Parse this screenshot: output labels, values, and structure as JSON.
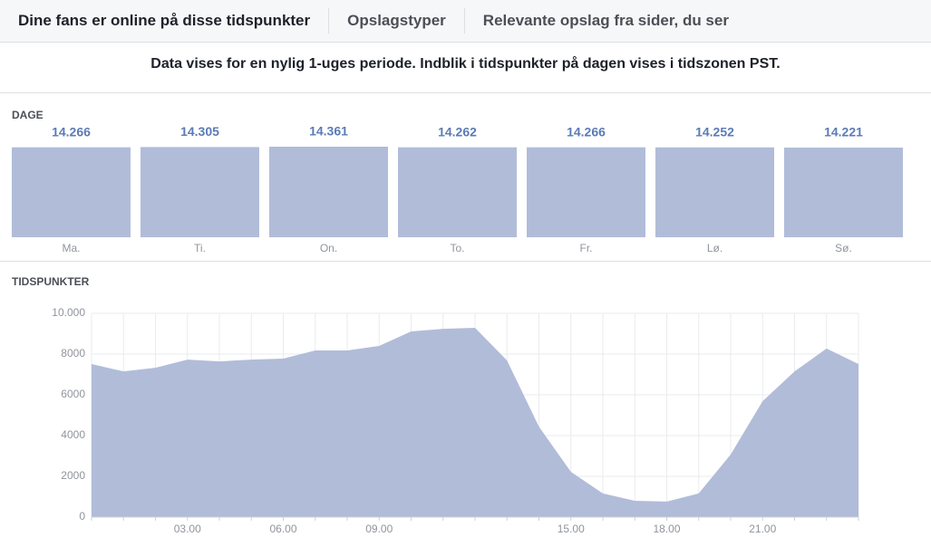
{
  "tabs": [
    "Dine fans er online på disse tidspunkter",
    "Opslagstyper",
    "Relevante opslag fra sider, du ser"
  ],
  "notice": "Data vises for en nylig 1-uges periode. Indblik i tidspunkter på dagen vises i tidszonen PST.",
  "chart_data": [
    {
      "type": "bar",
      "title": "DAGE",
      "categories": [
        "Ma.",
        "Ti.",
        "On.",
        "To.",
        "Fr.",
        "Lø.",
        "Sø."
      ],
      "values": [
        14266,
        14305,
        14361,
        14262,
        14266,
        14252,
        14221
      ],
      "value_labels": [
        "14.266",
        "14.305",
        "14.361",
        "14.262",
        "14.266",
        "14.252",
        "14.221"
      ],
      "color": "#b1bcd9"
    },
    {
      "type": "area",
      "title": "TIDSPUNKTER",
      "x": [
        0,
        1,
        2,
        3,
        4,
        5,
        6,
        7,
        8,
        9,
        10,
        11,
        12,
        13,
        14,
        15,
        16,
        17,
        18,
        19,
        20,
        21,
        22,
        23,
        24
      ],
      "values": [
        7510,
        7150,
        7330,
        7730,
        7640,
        7730,
        7780,
        8180,
        8180,
        8400,
        9110,
        9240,
        9290,
        7690,
        4440,
        2220,
        1160,
        800,
        760,
        1160,
        3070,
        5690,
        7150,
        8270,
        7510
      ],
      "color": "#b1bcd9",
      "xlim": [
        0,
        24
      ],
      "xticks": [
        {
          "value": 3,
          "label": "03.00"
        },
        {
          "value": 6,
          "label": "06.00"
        },
        {
          "value": 9,
          "label": "09.00"
        },
        {
          "value": 15,
          "label": "15.00"
        },
        {
          "value": 18,
          "label": "18.00"
        },
        {
          "value": 21,
          "label": "21.00"
        }
      ],
      "ylim": [
        0,
        10000
      ],
      "yticks": [
        0,
        2000,
        4000,
        6000,
        8000,
        {
          "value": 10000,
          "label": "10.000"
        }
      ],
      "grid": true
    }
  ]
}
